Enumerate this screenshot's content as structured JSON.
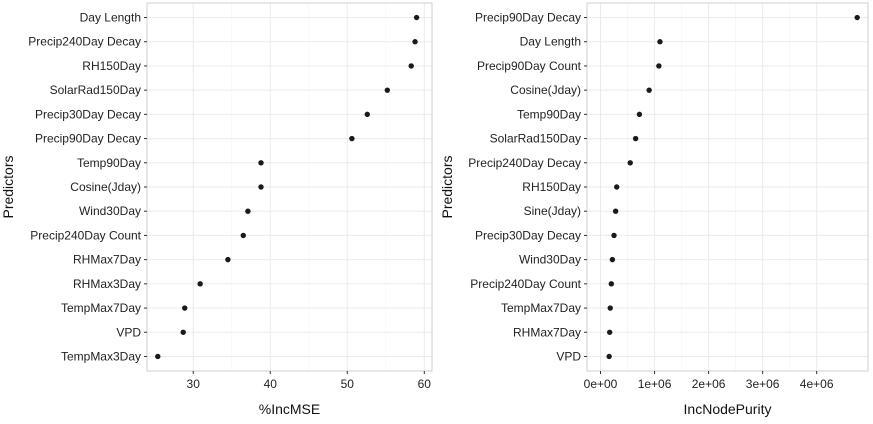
{
  "chart_data": [
    {
      "type": "scatter",
      "xlabel": "%IncMSE",
      "ylabel": "Predictors",
      "xlim": [
        24,
        61
      ],
      "xticks": [
        30,
        40,
        50,
        60
      ],
      "xtick_labels": [
        "30",
        "40",
        "50",
        "60"
      ],
      "grid": true,
      "categories": [
        "Day Length",
        "Precip240Day Decay",
        "RH150Day",
        "SolarRad150Day",
        "Precip30Day Decay",
        "Precip90Day Decay",
        "Temp90Day",
        "Cosine(Jday)",
        "Wind30Day",
        "Precip240Day Count",
        "RHMax7Day",
        "RHMax3Day",
        "TempMax7Day",
        "VPD",
        "TempMax3Day"
      ],
      "values": [
        59.0,
        58.8,
        58.3,
        55.2,
        52.6,
        50.6,
        38.8,
        38.8,
        37.1,
        36.5,
        34.5,
        30.9,
        28.9,
        28.7,
        25.4
      ]
    },
    {
      "type": "scatter",
      "xlabel": "IncNodePurity",
      "ylabel": "Predictors",
      "xlim": [
        -0.25,
        4.95
      ],
      "x_unit_multiplier": 1000000,
      "xticks": [
        0,
        1,
        2,
        3,
        4
      ],
      "xtick_labels": [
        "0e+00",
        "1e+06",
        "2e+06",
        "3e+06",
        "4e+06"
      ],
      "grid": true,
      "categories": [
        "Precip90Day Decay",
        "Day Length",
        "Precip90Day Count",
        "Cosine(Jday)",
        "Temp90Day",
        "SolarRad150Day",
        "Precip240Day Decay",
        "RH150Day",
        "Sine(Jday)",
        "Precip30Day Decay",
        "Wind30Day",
        "Precip240Day Count",
        "TempMax7Day",
        "RHMax7Day",
        "VPD"
      ],
      "values": [
        4.75,
        1.1,
        1.08,
        0.9,
        0.72,
        0.65,
        0.55,
        0.3,
        0.28,
        0.25,
        0.22,
        0.2,
        0.18,
        0.17,
        0.16
      ]
    }
  ]
}
